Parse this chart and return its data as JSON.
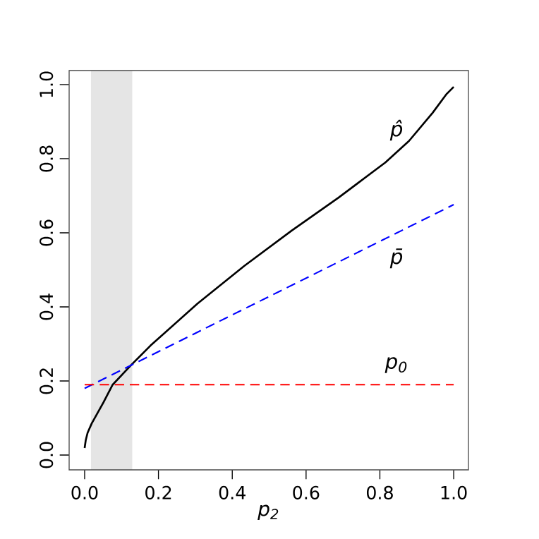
{
  "chart_data": {
    "type": "line",
    "xlabel": "p$_{2}$",
    "xlim": [
      -0.042,
      1.04
    ],
    "ylim": [
      -0.04,
      1.038
    ],
    "xticks": [
      {
        "value": 0,
        "label": "0.0"
      },
      {
        "value": 0.2,
        "label": "0.2"
      },
      {
        "value": 0.4,
        "label": "0.4"
      },
      {
        "value": 0.6,
        "label": "0.6"
      },
      {
        "value": 0.8,
        "label": "0.8"
      },
      {
        "value": 1,
        "label": "1.0"
      }
    ],
    "yticks": [
      {
        "value": 0,
        "label": "0.0"
      },
      {
        "value": 0.2,
        "label": "0.2"
      },
      {
        "value": 0.4,
        "label": "0.4"
      },
      {
        "value": 0.6,
        "label": "0.6"
      },
      {
        "value": 0.8,
        "label": "0.8"
      },
      {
        "value": 1,
        "label": "1.0"
      }
    ],
    "grid": false,
    "marker": "none",
    "bands": [
      {
        "axis": "x",
        "from": 0.017,
        "to": 0.129,
        "color": "#e5e5e5"
      }
    ],
    "series": [
      {
        "name": "p̂",
        "color": "#000000",
        "line_style": "solid",
        "x": [
          0.0,
          0.003,
          0.008,
          0.019,
          0.051,
          0.076,
          0.127,
          0.178,
          0.306,
          0.433,
          0.561,
          0.688,
          0.815,
          0.879,
          0.943,
          0.981,
          1.0
        ],
        "values": [
          0.019,
          0.04,
          0.06,
          0.085,
          0.142,
          0.19,
          0.244,
          0.295,
          0.409,
          0.511,
          0.606,
          0.695,
          0.79,
          0.848,
          0.924,
          0.975,
          0.994
        ]
      },
      {
        "name": "p̄",
        "color": "#0000ff",
        "line_style": "dashed",
        "x": [
          0.0,
          1.0
        ],
        "values": [
          0.18,
          0.676
        ]
      },
      {
        "name": "p$_{0}$",
        "color": "#ff0000",
        "line_style": "dashed",
        "x": [
          0.0,
          1.0
        ],
        "values": [
          0.19,
          0.19
        ]
      }
    ]
  }
}
